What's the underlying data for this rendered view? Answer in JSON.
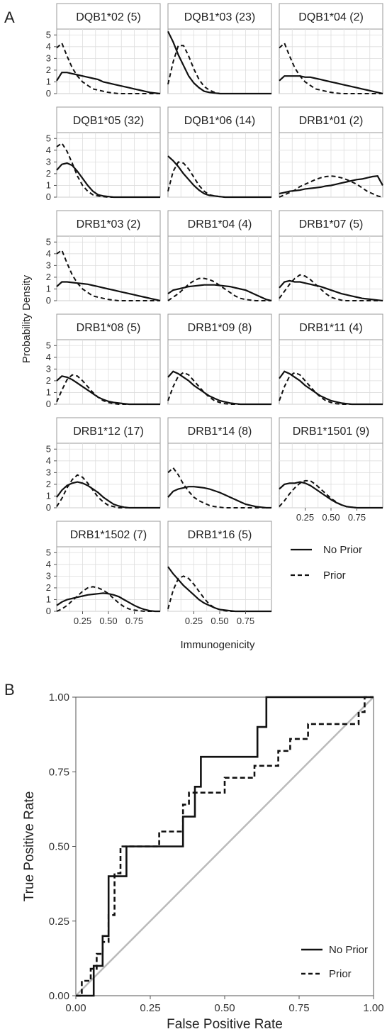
{
  "figure": {
    "panel_a_label": "A",
    "panel_b_label": "B"
  },
  "chart_data": [
    {
      "type": "line",
      "panel": "A",
      "xlabel": "Immunogenicity",
      "ylabel": "Probability Density",
      "xlim": [
        0,
        1
      ],
      "ylim": [
        0,
        5.5
      ],
      "xticks": [
        "0.25",
        "0.50",
        "0.75"
      ],
      "yticks": [
        "0",
        "1",
        "2",
        "3",
        "4",
        "5"
      ],
      "grid": true,
      "legend_position": "right",
      "legend": [
        {
          "name": "No Prior",
          "style": "solid"
        },
        {
          "name": "Prior",
          "style": "dashed"
        }
      ],
      "x": [
        0.0,
        0.05,
        0.1,
        0.15,
        0.2,
        0.25,
        0.3,
        0.35,
        0.4,
        0.45,
        0.5,
        0.55,
        0.6,
        0.65,
        0.7,
        0.75,
        0.8,
        0.85,
        0.9,
        0.95,
        1.0
      ],
      "facets": [
        {
          "title": "DQB1*02 (5)",
          "no_prior": [
            1.1,
            1.8,
            1.8,
            1.7,
            1.6,
            1.5,
            1.4,
            1.3,
            1.2,
            1.0,
            0.9,
            0.8,
            0.7,
            0.6,
            0.5,
            0.4,
            0.3,
            0.2,
            0.1,
            0.05,
            0.0
          ],
          "prior": [
            3.9,
            4.3,
            3.2,
            2.2,
            1.5,
            1.0,
            0.7,
            0.4,
            0.3,
            0.2,
            0.1,
            0.05,
            0.0,
            0.0,
            0.0,
            0.0,
            0.0,
            0.0,
            0.0,
            0.0,
            0.0
          ]
        },
        {
          "title": "DQB1*03 (23)",
          "no_prior": [
            5.3,
            4.4,
            3.3,
            2.4,
            1.5,
            0.9,
            0.5,
            0.2,
            0.1,
            0.05,
            0.0,
            0.0,
            0.0,
            0.0,
            0.0,
            0.0,
            0.0,
            0.0,
            0.0,
            0.0,
            0.0
          ],
          "prior": [
            0.8,
            2.7,
            4.1,
            4.1,
            3.2,
            2.1,
            1.2,
            0.6,
            0.3,
            0.1,
            0.0,
            0.0,
            0.0,
            0.0,
            0.0,
            0.0,
            0.0,
            0.0,
            0.0,
            0.0,
            0.0
          ]
        },
        {
          "title": "DQB1*04 (2)",
          "no_prior": [
            1.1,
            1.5,
            1.5,
            1.5,
            1.5,
            1.4,
            1.4,
            1.3,
            1.2,
            1.1,
            1.0,
            0.9,
            0.8,
            0.7,
            0.6,
            0.5,
            0.4,
            0.3,
            0.2,
            0.1,
            0.0
          ],
          "prior": [
            3.9,
            4.3,
            3.2,
            2.2,
            1.5,
            1.0,
            0.7,
            0.4,
            0.3,
            0.2,
            0.1,
            0.05,
            0.0,
            0.0,
            0.0,
            0.0,
            0.0,
            0.0,
            0.0,
            0.0,
            0.0
          ]
        },
        {
          "title": "DQB1*05 (32)",
          "no_prior": [
            2.3,
            2.8,
            2.9,
            2.7,
            2.2,
            1.6,
            1.0,
            0.5,
            0.2,
            0.1,
            0.05,
            0.0,
            0.0,
            0.0,
            0.0,
            0.0,
            0.0,
            0.0,
            0.0,
            0.0,
            0.0
          ],
          "prior": [
            4.3,
            4.6,
            3.9,
            2.9,
            1.8,
            1.0,
            0.5,
            0.2,
            0.1,
            0.05,
            0.0,
            0.0,
            0.0,
            0.0,
            0.0,
            0.0,
            0.0,
            0.0,
            0.0,
            0.0,
            0.0
          ]
        },
        {
          "title": "DQB1*06 (14)",
          "no_prior": [
            3.5,
            3.1,
            2.6,
            2.0,
            1.5,
            1.0,
            0.6,
            0.3,
            0.15,
            0.1,
            0.05,
            0.0,
            0.0,
            0.0,
            0.0,
            0.0,
            0.0,
            0.0,
            0.0,
            0.0,
            0.0
          ],
          "prior": [
            0.5,
            2.2,
            3.0,
            2.9,
            2.4,
            1.7,
            1.0,
            0.5,
            0.2,
            0.1,
            0.05,
            0.0,
            0.0,
            0.0,
            0.0,
            0.0,
            0.0,
            0.0,
            0.0,
            0.0,
            0.0
          ]
        },
        {
          "title": "DRB1*01 (2)",
          "no_prior": [
            0.3,
            0.4,
            0.5,
            0.55,
            0.6,
            0.7,
            0.75,
            0.8,
            0.85,
            0.95,
            1.0,
            1.1,
            1.2,
            1.3,
            1.4,
            1.5,
            1.55,
            1.65,
            1.75,
            1.8,
            1.0
          ],
          "prior": [
            0.0,
            0.2,
            0.4,
            0.6,
            0.9,
            1.1,
            1.3,
            1.5,
            1.65,
            1.75,
            1.8,
            1.75,
            1.65,
            1.5,
            1.3,
            1.1,
            0.8,
            0.5,
            0.3,
            0.1,
            0.0
          ]
        },
        {
          "title": "DRB1*03 (2)",
          "no_prior": [
            1.2,
            1.6,
            1.6,
            1.55,
            1.5,
            1.45,
            1.4,
            1.3,
            1.2,
            1.1,
            1.0,
            0.9,
            0.8,
            0.7,
            0.6,
            0.5,
            0.4,
            0.3,
            0.2,
            0.1,
            0.0
          ],
          "prior": [
            4.0,
            4.3,
            3.2,
            2.2,
            1.5,
            1.0,
            0.7,
            0.4,
            0.3,
            0.2,
            0.1,
            0.05,
            0.0,
            0.0,
            0.0,
            0.0,
            0.0,
            0.0,
            0.0,
            0.0,
            0.0
          ]
        },
        {
          "title": "DRB1*04 (4)",
          "no_prior": [
            0.6,
            0.9,
            1.0,
            1.1,
            1.2,
            1.25,
            1.3,
            1.35,
            1.35,
            1.35,
            1.3,
            1.25,
            1.2,
            1.1,
            1.0,
            0.9,
            0.7,
            0.5,
            0.3,
            0.1,
            0.0
          ],
          "prior": [
            0.0,
            0.3,
            0.6,
            1.0,
            1.4,
            1.7,
            1.9,
            1.9,
            1.8,
            1.6,
            1.3,
            1.0,
            0.7,
            0.4,
            0.2,
            0.1,
            0.05,
            0.0,
            0.0,
            0.0,
            0.0
          ]
        },
        {
          "title": "DRB1*07 (5)",
          "no_prior": [
            1.1,
            1.6,
            1.7,
            1.6,
            1.6,
            1.5,
            1.4,
            1.3,
            1.2,
            1.05,
            0.9,
            0.75,
            0.6,
            0.5,
            0.4,
            0.3,
            0.2,
            0.15,
            0.1,
            0.05,
            0.0
          ],
          "prior": [
            0.2,
            0.8,
            1.4,
            1.9,
            2.2,
            2.1,
            1.8,
            1.4,
            1.0,
            0.6,
            0.3,
            0.15,
            0.05,
            0.0,
            0.0,
            0.0,
            0.0,
            0.0,
            0.0,
            0.0,
            0.0
          ]
        },
        {
          "title": "DRB1*08 (5)",
          "no_prior": [
            2.0,
            2.4,
            2.3,
            2.1,
            1.8,
            1.5,
            1.2,
            0.9,
            0.6,
            0.4,
            0.25,
            0.15,
            0.1,
            0.05,
            0.0,
            0.0,
            0.0,
            0.0,
            0.0,
            0.0,
            0.0
          ],
          "prior": [
            0.2,
            1.2,
            2.1,
            2.5,
            2.4,
            2.0,
            1.5,
            1.0,
            0.6,
            0.3,
            0.15,
            0.05,
            0.0,
            0.0,
            0.0,
            0.0,
            0.0,
            0.0,
            0.0,
            0.0,
            0.0
          ]
        },
        {
          "title": "DRB1*09 (8)",
          "no_prior": [
            2.3,
            2.8,
            2.6,
            2.3,
            2.0,
            1.6,
            1.3,
            1.0,
            0.7,
            0.5,
            0.3,
            0.2,
            0.1,
            0.05,
            0.0,
            0.0,
            0.0,
            0.0,
            0.0,
            0.0,
            0.0
          ],
          "prior": [
            0.3,
            1.5,
            2.4,
            2.7,
            2.5,
            2.0,
            1.5,
            1.0,
            0.6,
            0.3,
            0.15,
            0.05,
            0.0,
            0.0,
            0.0,
            0.0,
            0.0,
            0.0,
            0.0,
            0.0,
            0.0
          ]
        },
        {
          "title": "DRB1*11 (4)",
          "no_prior": [
            2.2,
            2.8,
            2.6,
            2.3,
            2.0,
            1.6,
            1.3,
            1.0,
            0.7,
            0.5,
            0.3,
            0.2,
            0.1,
            0.05,
            0.0,
            0.0,
            0.0,
            0.0,
            0.0,
            0.0,
            0.0
          ],
          "prior": [
            0.3,
            1.5,
            2.4,
            2.7,
            2.5,
            2.0,
            1.5,
            1.0,
            0.6,
            0.3,
            0.15,
            0.05,
            0.0,
            0.0,
            0.0,
            0.0,
            0.0,
            0.0,
            0.0,
            0.0,
            0.0
          ]
        },
        {
          "title": "DRB1*12 (17)",
          "no_prior": [
            0.9,
            1.5,
            1.9,
            2.1,
            2.2,
            2.1,
            1.9,
            1.6,
            1.3,
            0.9,
            0.6,
            0.3,
            0.15,
            0.05,
            0.0,
            0.0,
            0.0,
            0.0,
            0.0,
            0.0,
            0.0
          ],
          "prior": [
            0.1,
            0.8,
            1.7,
            2.4,
            2.8,
            2.6,
            2.1,
            1.5,
            0.9,
            0.5,
            0.2,
            0.1,
            0.0,
            0.0,
            0.0,
            0.0,
            0.0,
            0.0,
            0.0,
            0.0,
            0.0
          ]
        },
        {
          "title": "DRB1*14 (8)",
          "no_prior": [
            0.9,
            1.4,
            1.6,
            1.7,
            1.8,
            1.8,
            1.75,
            1.7,
            1.6,
            1.45,
            1.3,
            1.1,
            0.9,
            0.7,
            0.5,
            0.3,
            0.2,
            0.1,
            0.05,
            0.0,
            0.0
          ],
          "prior": [
            3.0,
            3.4,
            2.8,
            2.0,
            1.4,
            0.9,
            0.6,
            0.4,
            0.2,
            0.1,
            0.05,
            0.0,
            0.0,
            0.0,
            0.0,
            0.0,
            0.0,
            0.0,
            0.0,
            0.0,
            0.0
          ]
        },
        {
          "title": "DRB1*1501 (9)",
          "no_prior": [
            1.6,
            2.0,
            2.1,
            2.1,
            2.2,
            2.1,
            1.9,
            1.6,
            1.3,
            1.0,
            0.7,
            0.45,
            0.25,
            0.1,
            0.05,
            0.0,
            0.0,
            0.0,
            0.0,
            0.0,
            0.0
          ],
          "prior": [
            0.1,
            0.6,
            1.2,
            1.7,
            2.1,
            2.3,
            2.3,
            2.0,
            1.6,
            1.2,
            0.8,
            0.5,
            0.25,
            0.1,
            0.05,
            0.0,
            0.0,
            0.0,
            0.0,
            0.0,
            0.0
          ]
        },
        {
          "title": "DRB1*1502 (7)",
          "no_prior": [
            0.5,
            0.8,
            1.0,
            1.1,
            1.2,
            1.3,
            1.4,
            1.45,
            1.5,
            1.55,
            1.5,
            1.4,
            1.25,
            1.0,
            0.75,
            0.5,
            0.3,
            0.15,
            0.05,
            0.0,
            0.0
          ],
          "prior": [
            0.0,
            0.2,
            0.5,
            0.9,
            1.3,
            1.7,
            2.0,
            2.1,
            2.0,
            1.8,
            1.5,
            1.1,
            0.7,
            0.4,
            0.2,
            0.1,
            0.05,
            0.0,
            0.0,
            0.0,
            0.0
          ]
        },
        {
          "title": "DRB1*16 (5)",
          "no_prior": [
            3.8,
            3.2,
            2.7,
            2.2,
            1.8,
            1.4,
            1.0,
            0.7,
            0.5,
            0.3,
            0.15,
            0.1,
            0.05,
            0.0,
            0.0,
            0.0,
            0.0,
            0.0,
            0.0,
            0.0,
            0.0
          ],
          "prior": [
            0.2,
            1.8,
            2.8,
            3.0,
            2.8,
            2.3,
            1.7,
            1.1,
            0.6,
            0.3,
            0.15,
            0.05,
            0.0,
            0.0,
            0.0,
            0.0,
            0.0,
            0.0,
            0.0,
            0.0,
            0.0
          ]
        }
      ]
    },
    {
      "type": "line",
      "panel": "B",
      "xlabel": "False Positive Rate",
      "ylabel": "True Positive Rate",
      "xlim": [
        0,
        1
      ],
      "ylim": [
        0,
        1
      ],
      "xticks": [
        "0.00",
        "0.25",
        "0.50",
        "0.75",
        "1.00"
      ],
      "yticks": [
        "0.00",
        "0.25",
        "0.50",
        "0.75",
        "1.00"
      ],
      "grid": false,
      "legend_position": "bottom-right",
      "reference_line": {
        "x": [
          0,
          1
        ],
        "y": [
          0,
          1
        ],
        "color": "#bbbbbb"
      },
      "series": [
        {
          "name": "No Prior",
          "style": "solid",
          "x": [
            0.0,
            0.06,
            0.06,
            0.06,
            0.09,
            0.09,
            0.11,
            0.11,
            0.17,
            0.17,
            0.36,
            0.36,
            0.4,
            0.4,
            0.42,
            0.42,
            0.61,
            0.61,
            0.64,
            0.64,
            1.0
          ],
          "y": [
            0.0,
            0.0,
            0.1,
            0.1,
            0.1,
            0.2,
            0.2,
            0.4,
            0.4,
            0.5,
            0.5,
            0.6,
            0.6,
            0.7,
            0.7,
            0.8,
            0.8,
            0.9,
            0.9,
            1.0,
            1.0
          ]
        },
        {
          "name": "Prior",
          "style": "dashed",
          "x": [
            0.0,
            0.02,
            0.02,
            0.05,
            0.05,
            0.07,
            0.07,
            0.09,
            0.09,
            0.11,
            0.11,
            0.13,
            0.13,
            0.15,
            0.15,
            0.28,
            0.28,
            0.36,
            0.36,
            0.38,
            0.38,
            0.42,
            0.42,
            0.5,
            0.5,
            0.6,
            0.6,
            0.68,
            0.68,
            0.72,
            0.72,
            0.78,
            0.78,
            0.95,
            0.95,
            0.97,
            0.97,
            1.0
          ],
          "y": [
            0.0,
            0.0,
            0.05,
            0.05,
            0.09,
            0.09,
            0.14,
            0.14,
            0.18,
            0.18,
            0.27,
            0.27,
            0.41,
            0.41,
            0.5,
            0.5,
            0.55,
            0.55,
            0.64,
            0.64,
            0.68,
            0.68,
            0.68,
            0.68,
            0.73,
            0.73,
            0.77,
            0.77,
            0.82,
            0.82,
            0.86,
            0.86,
            0.91,
            0.91,
            0.95,
            0.95,
            1.0,
            1.0
          ]
        }
      ]
    }
  ]
}
